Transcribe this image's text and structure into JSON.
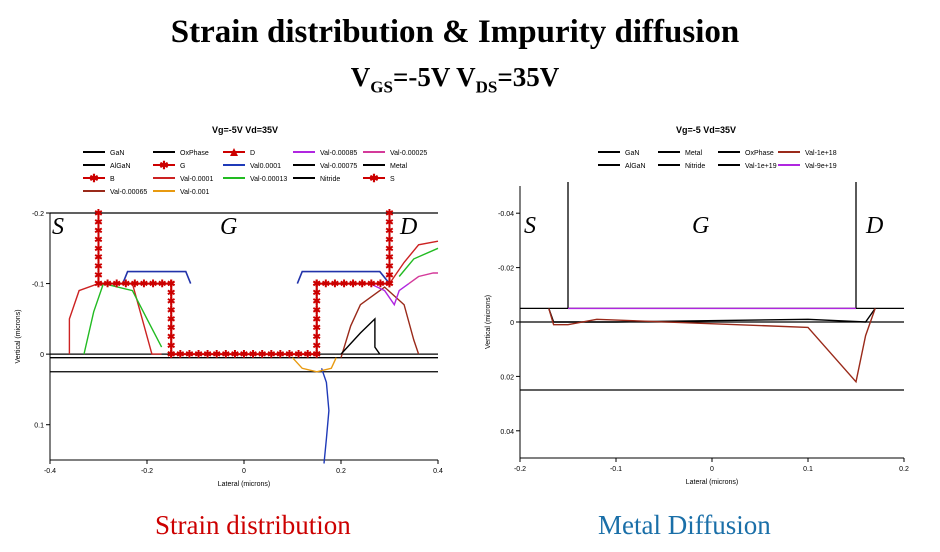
{
  "page": {
    "title": "Strain distribution & Impurity diffusion",
    "subtitle": {
      "v1": "V",
      "v1_sub": "GS",
      "v1_val": "=-5V ",
      "v2": "V",
      "v2_sub": "DS",
      "v2_val": "=35V"
    },
    "caption_left": "Strain distribution",
    "caption_right": "Metal Diffusion",
    "colors": {
      "caption_left": "#cc0000",
      "caption_right": "#1a6fa8"
    }
  },
  "chart_data": [
    {
      "type": "line",
      "title": "Vg=-5V Vd=35V",
      "xlabel": "Lateral (microns)",
      "ylabel": "Vertical (microns)",
      "xlim": [
        -0.4,
        0.4
      ],
      "ylim": [
        -0.2,
        0.15
      ],
      "y_inverted": true,
      "xticks": [
        "-0.4",
        "-0.2",
        "0",
        "0.2",
        "0.4"
      ],
      "yticks": [
        "-0.2",
        "-0.1",
        "0",
        "0.1"
      ],
      "region_labels": [
        "S",
        "G",
        "D"
      ],
      "legend_placement": "top",
      "legend": [
        {
          "name": "GaN",
          "color": "#000000",
          "marker": "line"
        },
        {
          "name": "OxPhase",
          "color": "#000000",
          "marker": "line"
        },
        {
          "name": "D",
          "color": "#cc0000",
          "marker": "triangle"
        },
        {
          "name": "Val-0.00085",
          "color": "#b026e0",
          "marker": "line"
        },
        {
          "name": "Val-0.00025",
          "color": "#d43a9a",
          "marker": "line"
        },
        {
          "name": "AlGaN",
          "color": "#000000",
          "marker": "line"
        },
        {
          "name": "G",
          "color": "#cc0000",
          "marker": "star"
        },
        {
          "name": "Val0.0001",
          "color": "#1f3ab8",
          "marker": "line"
        },
        {
          "name": "Val-0.00075",
          "color": "#000000",
          "marker": "line"
        },
        {
          "name": "Metal",
          "color": "#000000",
          "marker": "line"
        },
        {
          "name": "B",
          "color": "#cc0000",
          "marker": "star"
        },
        {
          "name": "Val-0.0001",
          "color": "#cc2222",
          "marker": "line"
        },
        {
          "name": "Val-0.00013",
          "color": "#22bb22",
          "marker": "line"
        },
        {
          "name": "Nitride",
          "color": "#000000",
          "marker": "line"
        },
        {
          "name": "S",
          "color": "#cc0000",
          "marker": "star"
        },
        {
          "name": "Val-0.00065",
          "color": "#9a2a1a",
          "marker": "line"
        },
        {
          "name": "Val-0.001",
          "color": "#e89a10",
          "marker": "line"
        }
      ],
      "layer_lines_y": [
        -0.2,
        0.0,
        0.005,
        0.025
      ],
      "electrodes": [
        {
          "name": "S",
          "points": [
            [
              -0.3,
              -0.2
            ],
            [
              -0.3,
              -0.1
            ],
            [
              -0.15,
              -0.1
            ],
            [
              -0.15,
              0.0
            ],
            [
              0.15,
              0.0
            ],
            [
              0.15,
              -0.1
            ],
            [
              0.3,
              -0.1
            ],
            [
              0.3,
              -0.2
            ]
          ]
        }
      ],
      "nitride_boxes": [
        {
          "points": [
            [
              -0.25,
              -0.1
            ],
            [
              -0.24,
              -0.117
            ],
            [
              -0.12,
              -0.117
            ],
            [
              -0.11,
              -0.1
            ]
          ]
        },
        {
          "points": [
            [
              0.11,
              -0.1
            ],
            [
              0.12,
              -0.117
            ],
            [
              0.28,
              -0.117
            ],
            [
              0.3,
              -0.1
            ]
          ]
        }
      ],
      "series": [
        {
          "name": "Val-0.0001",
          "color": "#cc2222",
          "points": [
            [
              -0.36,
              0.0
            ],
            [
              -0.36,
              -0.05
            ],
            [
              -0.34,
              -0.09
            ],
            [
              -0.3,
              -0.1
            ],
            [
              -0.23,
              -0.1
            ],
            [
              -0.21,
              -0.05
            ],
            [
              -0.19,
              0.0
            ],
            [
              -0.17,
              0.0
            ]
          ]
        },
        {
          "name": "Val-0.00013",
          "color": "#22bb22",
          "points": [
            [
              -0.33,
              0.0
            ],
            [
              -0.31,
              -0.06
            ],
            [
              -0.29,
              -0.1
            ],
            [
              -0.23,
              -0.09
            ],
            [
              -0.2,
              -0.05
            ],
            [
              -0.17,
              -0.01
            ]
          ]
        },
        {
          "name": "Val-0.00065",
          "color": "#9a2a1a",
          "points": [
            [
              0.2,
              0.005
            ],
            [
              0.22,
              -0.04
            ],
            [
              0.24,
              -0.07
            ],
            [
              0.29,
              -0.095
            ],
            [
              0.33,
              -0.07
            ],
            [
              0.35,
              -0.02
            ],
            [
              0.36,
              0.0
            ]
          ]
        },
        {
          "name": "Val-0.00075",
          "color": "#000000",
          "points": [
            [
              0.2,
              0.0
            ],
            [
              0.24,
              -0.03
            ],
            [
              0.27,
              -0.05
            ],
            [
              0.27,
              -0.01
            ],
            [
              0.28,
              0.0
            ]
          ]
        },
        {
          "name": "Val-0.00085",
          "color": "#b026e0",
          "points": [
            [
              0.26,
              -0.1
            ],
            [
              0.29,
              -0.09
            ],
            [
              0.31,
              -0.07
            ],
            [
              0.32,
              -0.09
            ],
            [
              0.34,
              -0.1
            ]
          ]
        },
        {
          "name": "Val-0.00025",
          "color": "#d43a9a",
          "points": [
            [
              0.34,
              -0.1
            ],
            [
              0.36,
              -0.11
            ],
            [
              0.39,
              -0.115
            ],
            [
              0.4,
              -0.115
            ]
          ]
        },
        {
          "name": "Val0.0001",
          "color": "#1f3ab8",
          "points": [
            [
              0.16,
              0.02
            ],
            [
              0.17,
              0.04
            ],
            [
              0.175,
              0.08
            ],
            [
              0.17,
              0.12
            ],
            [
              0.165,
              0.155
            ]
          ]
        },
        {
          "name": "Val-0.001",
          "color": "#e89a10",
          "points": [
            [
              0.1,
              0.005
            ],
            [
              0.12,
              0.02
            ],
            [
              0.15,
              0.025
            ],
            [
              0.18,
              0.02
            ],
            [
              0.19,
              0.005
            ]
          ]
        },
        {
          "name": "Val-0.0001",
          "color": "#cc2222",
          "points": [
            [
              0.3,
              -0.1
            ],
            [
              0.33,
              -0.13
            ],
            [
              0.36,
              -0.155
            ],
            [
              0.4,
              -0.16
            ]
          ]
        },
        {
          "name": "Val-0.00013",
          "color": "#22bb22",
          "points": [
            [
              0.32,
              -0.11
            ],
            [
              0.35,
              -0.135
            ],
            [
              0.4,
              -0.15
            ]
          ]
        }
      ]
    },
    {
      "type": "line",
      "title": "Vg=-5 Vd=35V",
      "xlabel": "Lateral (microns)",
      "ylabel": "Vertical (microns)",
      "xlim": [
        -0.2,
        0.2
      ],
      "ylim": [
        -0.05,
        0.05
      ],
      "y_inverted": true,
      "xticks": [
        "-0.2",
        "-0.1",
        "0",
        "0.1",
        "0.2"
      ],
      "yticks": [
        "-0.04",
        "-0.02",
        "0",
        "0.02",
        "0.04"
      ],
      "region_labels": [
        "S",
        "G",
        "D"
      ],
      "legend_placement": "top",
      "legend": [
        {
          "name": "GaN",
          "color": "#000000"
        },
        {
          "name": "Metal",
          "color": "#000000"
        },
        {
          "name": "OxPhase",
          "color": "#000000"
        },
        {
          "name": "Val-1e+18",
          "color": "#9a2a1a"
        },
        {
          "name": "AlGaN",
          "color": "#000000"
        },
        {
          "name": "Nitride",
          "color": "#000000"
        },
        {
          "name": "Val-1e+19",
          "color": "#000000"
        },
        {
          "name": "Val-9e+19",
          "color": "#b026e0"
        }
      ],
      "layer_lines_y": [
        -0.005,
        0.0,
        0.025
      ],
      "gate_lines_x": [
        -0.15,
        0.15
      ],
      "series": [
        {
          "name": "Val-9e+19",
          "color": "#b026e0",
          "points": [
            [
              -0.15,
              -0.005
            ],
            [
              0.15,
              -0.005
            ]
          ]
        },
        {
          "name": "Val-1e+19",
          "color": "#000000",
          "points": [
            [
              -0.17,
              -0.005
            ],
            [
              -0.165,
              0.0
            ],
            [
              -0.1,
              0.0
            ],
            [
              0.1,
              -0.001
            ],
            [
              0.16,
              0.0
            ],
            [
              0.17,
              -0.005
            ]
          ]
        },
        {
          "name": "Val-1e+18",
          "color": "#9a2a1a",
          "points": [
            [
              -0.17,
              -0.005
            ],
            [
              -0.165,
              0.001
            ],
            [
              -0.15,
              0.001
            ],
            [
              -0.12,
              -0.001
            ],
            [
              0.1,
              0.002
            ],
            [
              0.12,
              0.01
            ],
            [
              0.15,
              0.022
            ],
            [
              0.16,
              0.005
            ],
            [
              0.17,
              -0.005
            ]
          ]
        }
      ]
    }
  ]
}
